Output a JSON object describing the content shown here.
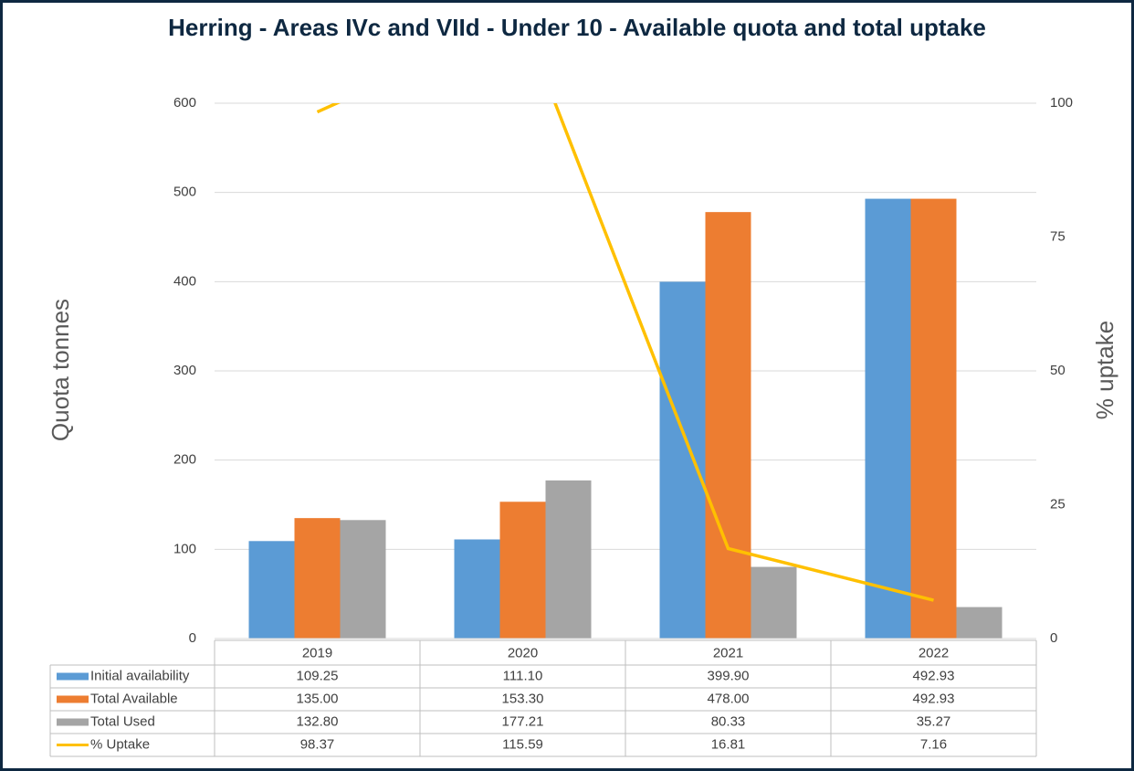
{
  "chart_data": {
    "type": "bar",
    "title": "Herring - Areas IVc and VIId - Under 10 - Available quota and total uptake",
    "y_label": "Quota tonnes",
    "y2_label": "% uptake",
    "categories": [
      "2019",
      "2020",
      "2021",
      "2022"
    ],
    "series": [
      {
        "name": "Initial availability",
        "color": "#5b9bd5",
        "values": [
          109.25,
          111.1,
          399.9,
          492.93
        ],
        "value_labels": [
          "109.25",
          "111.10",
          "399.90",
          "492.93"
        ]
      },
      {
        "name": "Total Available",
        "color": "#ed7d31",
        "values": [
          135,
          153.3,
          478,
          492.93
        ],
        "value_labels": [
          "135.00",
          "153.30",
          "478.00",
          "492.93"
        ]
      },
      {
        "name": "Total Used",
        "color": "#a5a5a5",
        "values": [
          132.8,
          177.21,
          80.33,
          35.27
        ],
        "value_labels": [
          "132.80",
          "177.21",
          "80.33",
          "35.27"
        ]
      },
      {
        "name": "% Uptake",
        "type": "line",
        "axis": "y2",
        "color": "#ffc000",
        "values": [
          98.37,
          115.59,
          16.81,
          7.16
        ],
        "value_labels": [
          "98.37",
          "115.59",
          "16.81",
          "7.16"
        ]
      }
    ],
    "ylim": [
      0,
      600
    ],
    "yticks": [
      0,
      100,
      200,
      300,
      400,
      500,
      600
    ],
    "y2lim": [
      0,
      100
    ],
    "y2ticks": [
      0,
      25,
      50,
      75,
      100
    ],
    "grid": true
  }
}
